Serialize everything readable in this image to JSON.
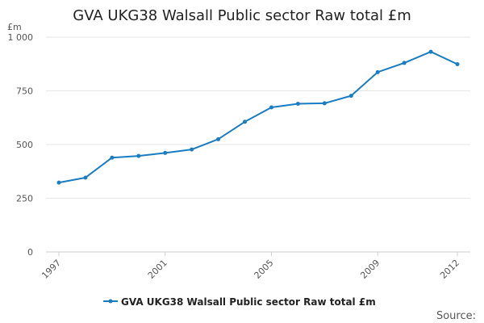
{
  "chart_data": {
    "type": "line",
    "title": "GVA UKG38 Walsall Public sector Raw total £m",
    "ylabel": "£m",
    "xlabel": "",
    "ylim": [
      0,
      1000
    ],
    "yticks": [
      0,
      250,
      500,
      750,
      1000
    ],
    "ytick_labels": [
      "0",
      "250",
      "500",
      "750",
      "1 000"
    ],
    "x": [
      1997,
      1998,
      1999,
      2000,
      2001,
      2002,
      2003,
      2004,
      2005,
      2006,
      2007,
      2008,
      2009,
      2010,
      2011,
      2012
    ],
    "xtick_labels": [
      "1997",
      "2001",
      "2005",
      "2009",
      "2012"
    ],
    "series": [
      {
        "name": "GVA UKG38 Walsall Public sector Raw total £m",
        "color": "#1a7cc1",
        "values": [
          323,
          346,
          439,
          447,
          461,
          477,
          525,
          606,
          673,
          690,
          692,
          727,
          837,
          880,
          932,
          874
        ]
      }
    ],
    "grid": true,
    "legend_position": "bottom"
  },
  "source_label": "Source:"
}
